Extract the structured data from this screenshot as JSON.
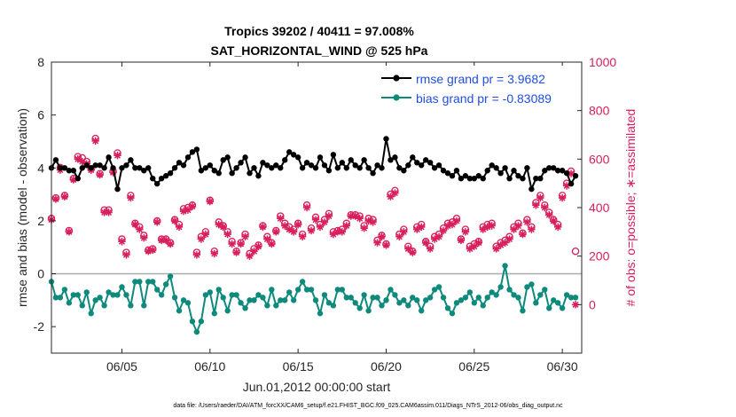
{
  "chart_data": {
    "type": "line",
    "title": "Tropics 39202 / 40411 = 97.008%",
    "subtitle": "SAT_HORIZONTAL_WIND @ 525 hPa",
    "xlabel": "Jun.01,2012 00:00:00 start",
    "ylabel": "rmse and bias (model - observation)",
    "y2label": "# of obs: o=possible; ∗=assimilated",
    "footer": "data file: /Users/raeder/DAI/ATM_forcXX/CAM6_setup/f.e21.FHIST_BGC.f09_025.CAM6assim.011/Diags_NTrS_2012-06/obs_diag_output.nc",
    "xlim": [
      1.0,
      31.1
    ],
    "ylim": [
      -3,
      8
    ],
    "y2lim": [
      -200,
      1000
    ],
    "x_ticks": [
      5,
      10,
      15,
      20,
      25,
      30
    ],
    "x_tick_labels": [
      "06/05",
      "06/10",
      "06/15",
      "06/20",
      "06/25",
      "06/30"
    ],
    "y_ticks": [
      -2,
      0,
      2,
      4,
      6,
      8
    ],
    "y_tick_labels": [
      "-2",
      "0",
      "2",
      "4",
      "6",
      "8"
    ],
    "y2_ticks": [
      0,
      200,
      400,
      600,
      800,
      1000
    ],
    "y2_tick_labels": [
      "0",
      "200",
      "400",
      "600",
      "800",
      "1000"
    ],
    "zero_line": 0,
    "legend": {
      "position": "top-right",
      "entries": [
        "rmse grand pr = 3.9682",
        "bias grand pr = -0.83089"
      ]
    },
    "colors": {
      "rmse": "#000000",
      "bias": "#0e8a7d",
      "obs": "#d81e5b",
      "legend_text": "#1f4fe0",
      "zero_line": "#b0b0b0",
      "axis": "#262626"
    },
    "series": [
      {
        "name": "rmse",
        "axis": "left",
        "x": [
          1.0,
          1.25,
          1.5,
          1.75,
          2.0,
          2.25,
          2.5,
          2.75,
          3.0,
          3.25,
          3.5,
          3.75,
          4.0,
          4.25,
          4.5,
          4.75,
          5.0,
          5.25,
          5.5,
          5.75,
          6.0,
          6.25,
          6.5,
          6.75,
          7.0,
          7.25,
          7.5,
          7.75,
          8.0,
          8.25,
          8.5,
          8.75,
          9.0,
          9.25,
          9.5,
          9.75,
          10.0,
          10.25,
          10.5,
          10.75,
          11.0,
          11.25,
          11.5,
          11.75,
          12.0,
          12.25,
          12.5,
          12.75,
          13.0,
          13.25,
          13.5,
          13.75,
          14.0,
          14.25,
          14.5,
          14.75,
          15.0,
          15.25,
          15.5,
          15.75,
          16.0,
          16.25,
          16.5,
          16.75,
          17.0,
          17.25,
          17.5,
          17.75,
          18.0,
          18.25,
          18.5,
          18.75,
          19.0,
          19.25,
          19.5,
          19.75,
          20.0,
          20.25,
          20.5,
          20.75,
          21.0,
          21.25,
          21.5,
          21.75,
          22.0,
          22.25,
          22.5,
          22.75,
          23.0,
          23.25,
          23.5,
          23.75,
          24.0,
          24.25,
          24.5,
          24.75,
          25.0,
          25.25,
          25.5,
          25.75,
          26.0,
          26.25,
          26.5,
          26.75,
          27.0,
          27.25,
          27.5,
          27.75,
          28.0,
          28.25,
          28.5,
          28.75,
          29.0,
          29.25,
          29.5,
          29.75,
          30.0,
          30.25,
          30.5,
          30.75
        ],
        "y": [
          4.0,
          4.3,
          4.0,
          4.0,
          3.9,
          3.9,
          3.6,
          4.0,
          4.1,
          4.0,
          4.1,
          4.1,
          4.0,
          4.4,
          4.0,
          3.2,
          4.0,
          4.1,
          4.3,
          4.0,
          4.0,
          3.9,
          4.0,
          3.6,
          3.4,
          3.6,
          3.7,
          3.8,
          4.0,
          4.2,
          4.1,
          4.4,
          4.6,
          4.7,
          3.9,
          4.0,
          4.1,
          3.9,
          3.8,
          4.3,
          4.4,
          3.8,
          4.0,
          4.2,
          4.4,
          3.8,
          4.0,
          3.7,
          4.2,
          4.1,
          4.0,
          4.1,
          4.0,
          4.3,
          4.6,
          4.5,
          4.4,
          4.0,
          4.2,
          4.1,
          4.0,
          4.4,
          4.1,
          3.9,
          4.5,
          4.0,
          4.2,
          4.0,
          4.3,
          4.1,
          4.0,
          4.3,
          4.0,
          3.8,
          4.1,
          4.0,
          5.1,
          4.3,
          4.4,
          4.0,
          3.9,
          4.1,
          4.4,
          4.2,
          4.1,
          4.3,
          4.2,
          4.0,
          4.1,
          3.9,
          3.8,
          3.7,
          3.9,
          3.6,
          3.7,
          3.6,
          3.6,
          3.7,
          3.6,
          3.9,
          4.1,
          4.0,
          3.8,
          4.0,
          3.6,
          3.9,
          3.7,
          3.6,
          4.0,
          3.2,
          3.6,
          3.6,
          3.9,
          4.0,
          4.0,
          3.9,
          3.9,
          3.8,
          3.4,
          3.7
        ]
      },
      {
        "name": "bias",
        "axis": "left",
        "x": [
          1.0,
          1.25,
          1.5,
          1.75,
          2.0,
          2.25,
          2.5,
          2.75,
          3.0,
          3.25,
          3.5,
          3.75,
          4.0,
          4.25,
          4.5,
          4.75,
          5.0,
          5.25,
          5.5,
          5.75,
          6.0,
          6.25,
          6.5,
          6.75,
          7.0,
          7.25,
          7.5,
          7.75,
          8.0,
          8.25,
          8.5,
          8.75,
          9.0,
          9.25,
          9.5,
          9.75,
          10.0,
          10.25,
          10.5,
          10.75,
          11.0,
          11.25,
          11.5,
          11.75,
          12.0,
          12.25,
          12.5,
          12.75,
          13.0,
          13.25,
          13.5,
          13.75,
          14.0,
          14.25,
          14.5,
          14.75,
          15.0,
          15.25,
          15.5,
          15.75,
          16.0,
          16.25,
          16.5,
          16.75,
          17.0,
          17.25,
          17.5,
          17.75,
          18.0,
          18.25,
          18.5,
          18.75,
          19.0,
          19.25,
          19.5,
          19.75,
          20.0,
          20.25,
          20.5,
          20.75,
          21.0,
          21.25,
          21.5,
          21.75,
          22.0,
          22.25,
          22.5,
          22.75,
          23.0,
          23.25,
          23.5,
          23.75,
          24.0,
          24.25,
          24.5,
          24.75,
          25.0,
          25.25,
          25.5,
          25.75,
          26.0,
          26.25,
          26.5,
          26.75,
          27.0,
          27.25,
          27.5,
          27.75,
          28.0,
          28.25,
          28.5,
          28.75,
          29.0,
          29.25,
          29.5,
          29.75,
          30.0,
          30.25,
          30.5,
          30.75
        ],
        "y": [
          -0.3,
          -0.9,
          -0.9,
          -0.6,
          -1.1,
          -0.8,
          -0.8,
          -1.2,
          -0.7,
          -1.5,
          -1.0,
          -0.9,
          -1.2,
          -0.7,
          -0.8,
          -0.8,
          -0.5,
          -0.8,
          -1.2,
          -0.3,
          -0.3,
          -1.2,
          -0.3,
          -0.3,
          -0.6,
          -0.8,
          -0.4,
          -0.1,
          -0.9,
          -1.4,
          -1.0,
          -1.1,
          -1.8,
          -2.2,
          -1.8,
          -0.8,
          -0.7,
          -1.5,
          -0.6,
          -0.9,
          -1.4,
          -0.8,
          -0.8,
          -1.1,
          -1.3,
          -1.0,
          -1.0,
          -0.8,
          -0.9,
          -1.2,
          -0.6,
          -1.2,
          -1.0,
          -1.0,
          -0.7,
          -1.0,
          -0.6,
          -0.3,
          -0.6,
          -0.6,
          -1.0,
          -1.5,
          -0.8,
          -1.1,
          -1.2,
          -0.6,
          -0.6,
          -0.9,
          -0.9,
          -1.1,
          -1.3,
          -0.8,
          -1.4,
          -0.9,
          -0.9,
          -1.2,
          -1.0,
          -0.6,
          -0.8,
          -1.1,
          -1.0,
          -1.2,
          -0.9,
          -1.0,
          -1.4,
          -1.0,
          -0.9,
          -0.6,
          -0.5,
          -0.9,
          -1.3,
          -1.5,
          -1.1,
          -1.0,
          -0.9,
          -0.7,
          -1.1,
          -0.9,
          -1.2,
          -0.9,
          -0.7,
          -0.8,
          -0.5,
          0.3,
          -0.6,
          -0.8,
          -0.9,
          -1.4,
          -0.5,
          -0.4,
          -1.1,
          -0.8,
          -0.6,
          -1.3,
          -1.0,
          -1.1,
          -1.3,
          -0.8,
          -0.9,
          -0.9
        ]
      },
      {
        "name": "obs possible",
        "axis": "right",
        "marker": "o",
        "x": [
          1.0,
          1.25,
          1.5,
          1.75,
          2.0,
          2.25,
          2.5,
          2.75,
          3.0,
          3.25,
          3.5,
          3.75,
          4.0,
          4.25,
          4.5,
          4.75,
          5.0,
          5.25,
          5.5,
          5.75,
          6.0,
          6.25,
          6.5,
          6.75,
          7.0,
          7.25,
          7.5,
          7.75,
          8.0,
          8.25,
          8.5,
          8.75,
          9.0,
          9.25,
          9.5,
          9.75,
          10.0,
          10.25,
          10.5,
          10.75,
          11.0,
          11.25,
          11.5,
          11.75,
          12.0,
          12.25,
          12.5,
          12.75,
          13.0,
          13.25,
          13.5,
          13.75,
          14.0,
          14.25,
          14.5,
          14.75,
          15.0,
          15.25,
          15.5,
          15.75,
          16.0,
          16.25,
          16.5,
          16.75,
          17.0,
          17.25,
          17.5,
          17.75,
          18.0,
          18.25,
          18.5,
          18.75,
          19.0,
          19.25,
          19.5,
          19.75,
          20.0,
          20.25,
          20.5,
          20.75,
          21.0,
          21.25,
          21.5,
          21.75,
          22.0,
          22.25,
          22.5,
          22.75,
          23.0,
          23.25,
          23.5,
          23.75,
          24.0,
          24.25,
          24.5,
          24.75,
          25.0,
          25.25,
          25.5,
          25.75,
          26.0,
          26.25,
          26.5,
          26.75,
          27.0,
          27.25,
          27.5,
          27.75,
          28.0,
          28.25,
          28.5,
          28.75,
          29.0,
          29.25,
          29.5,
          29.75,
          30.0,
          30.25,
          30.5,
          30.75
        ],
        "y": [
          355,
          440,
          565,
          450,
          305,
          520,
          610,
          605,
          590,
          560,
          685,
          540,
          390,
          390,
          550,
          625,
          270,
          215,
          450,
          335,
          320,
          285,
          225,
          230,
          345,
          270,
          270,
          255,
          350,
          330,
          395,
          400,
          410,
          215,
          280,
          300,
          430,
          220,
          340,
          325,
          300,
          260,
          220,
          255,
          290,
          210,
          230,
          245,
          325,
          280,
          255,
          305,
          365,
          335,
          320,
          310,
          335,
          290,
          410,
          315,
          360,
          330,
          350,
          375,
          300,
          305,
          310,
          335,
          370,
          370,
          365,
          325,
          355,
          350,
          265,
          285,
          250,
          455,
          470,
          290,
          310,
          240,
          220,
          320,
          330,
          260,
          240,
          280,
          290,
          315,
          335,
          340,
          355,
          270,
          310,
          240,
          250,
          260,
          320,
          330,
          335,
          240,
          255,
          265,
          280,
          320,
          335,
          295,
          350,
          320,
          420,
          450,
          410,
          380,
          350,
          330,
          450,
          500,
          550,
          220
        ]
      },
      {
        "name": "obs assimilated",
        "axis": "right",
        "marker": "*",
        "x": [
          1.0,
          1.25,
          1.5,
          1.75,
          2.0,
          2.25,
          2.5,
          2.75,
          3.0,
          3.25,
          3.5,
          3.75,
          4.0,
          4.25,
          4.5,
          4.75,
          5.0,
          5.25,
          5.5,
          5.75,
          6.0,
          6.25,
          6.5,
          6.75,
          7.0,
          7.25,
          7.5,
          7.75,
          8.0,
          8.25,
          8.5,
          8.75,
          9.0,
          9.25,
          9.5,
          9.75,
          10.0,
          10.25,
          10.5,
          10.75,
          11.0,
          11.25,
          11.5,
          11.75,
          12.0,
          12.25,
          12.5,
          12.75,
          13.0,
          13.25,
          13.5,
          13.75,
          14.0,
          14.25,
          14.5,
          14.75,
          15.0,
          15.25,
          15.5,
          15.75,
          16.0,
          16.25,
          16.5,
          16.75,
          17.0,
          17.25,
          17.5,
          17.75,
          18.0,
          18.25,
          18.5,
          18.75,
          19.0,
          19.25,
          19.5,
          19.75,
          20.0,
          20.25,
          20.5,
          20.75,
          21.0,
          21.25,
          21.5,
          21.75,
          22.0,
          22.25,
          22.5,
          22.75,
          23.0,
          23.25,
          23.5,
          23.75,
          24.0,
          24.25,
          24.5,
          24.75,
          25.0,
          25.25,
          25.5,
          25.75,
          26.0,
          26.25,
          26.5,
          26.75,
          27.0,
          27.25,
          27.5,
          27.75,
          28.0,
          28.25,
          28.5,
          28.75,
          29.0,
          29.25,
          29.5,
          29.75,
          30.0,
          30.25,
          30.5,
          30.75
        ],
        "y": [
          350,
          435,
          555,
          445,
          300,
          515,
          600,
          590,
          580,
          555,
          675,
          535,
          380,
          380,
          545,
          615,
          260,
          205,
          440,
          330,
          310,
          275,
          220,
          225,
          340,
          265,
          265,
          250,
          345,
          320,
          385,
          390,
          405,
          205,
          270,
          290,
          425,
          210,
          330,
          320,
          290,
          250,
          215,
          250,
          280,
          200,
          220,
          240,
          320,
          270,
          250,
          300,
          355,
          325,
          310,
          300,
          330,
          280,
          400,
          305,
          350,
          320,
          340,
          365,
          290,
          300,
          300,
          325,
          365,
          365,
          355,
          315,
          345,
          340,
          255,
          280,
          245,
          445,
          460,
          280,
          300,
          230,
          215,
          310,
          320,
          255,
          230,
          270,
          280,
          305,
          325,
          330,
          345,
          265,
          300,
          230,
          240,
          255,
          310,
          320,
          325,
          230,
          245,
          255,
          270,
          310,
          325,
          290,
          340,
          310,
          410,
          440,
          400,
          370,
          345,
          320,
          440,
          490,
          540,
          0
        ]
      }
    ]
  }
}
